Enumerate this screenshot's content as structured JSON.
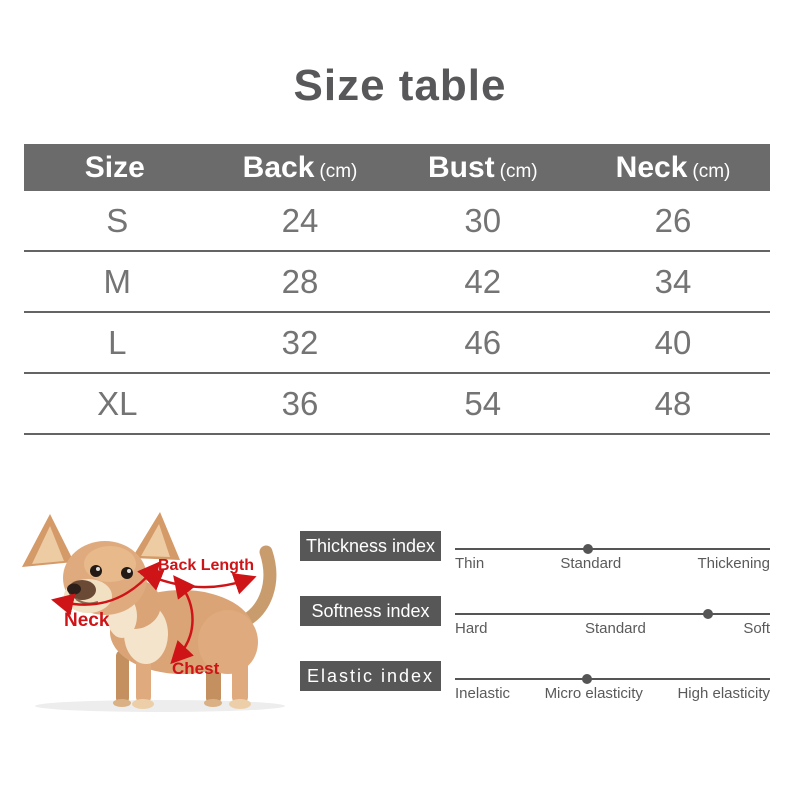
{
  "title": "Size table",
  "table": {
    "headers": [
      {
        "name": "Size",
        "unit": ""
      },
      {
        "name": "Back",
        "unit": "(cm)"
      },
      {
        "name": "Bust",
        "unit": "(cm)"
      },
      {
        "name": "Neck",
        "unit": "(cm)"
      }
    ],
    "rows": [
      {
        "size": "S",
        "back": "24",
        "bust": "30",
        "neck": "26"
      },
      {
        "size": "M",
        "back": "28",
        "bust": "42",
        "neck": "34"
      },
      {
        "size": "L",
        "back": "32",
        "bust": "46",
        "neck": "40"
      },
      {
        "size": "XL",
        "back": "36",
        "bust": "54",
        "neck": "48"
      }
    ]
  },
  "measurement_guide": {
    "back_label": "Back Length",
    "neck_label": "Neck",
    "chest_label": "Chest"
  },
  "indices": [
    {
      "label": "Thickness index",
      "levels": [
        "Thin",
        "Standard",
        "Thickening"
      ],
      "selected": "Standard",
      "dot_percent": 42.2
    },
    {
      "label": "Softness index",
      "levels": [
        "Hard",
        "Standard",
        "Soft"
      ],
      "selected": "Soft",
      "dot_percent": 80.3
    },
    {
      "label": "Elastic index",
      "levels": [
        "Inelastic",
        "Micro elasticity",
        "High elasticity"
      ],
      "selected": "Micro elasticity",
      "dot_percent": 41.9
    }
  ],
  "colors": {
    "title_text": "#58585b",
    "header_bg": "#6b6b6b",
    "header_text": "#ffffff",
    "row_text": "#747474",
    "divider": "#646464",
    "index_label_bg": "#575757",
    "scale": "#555555",
    "annotation_red": "#cf1418",
    "background": "#ffffff"
  }
}
